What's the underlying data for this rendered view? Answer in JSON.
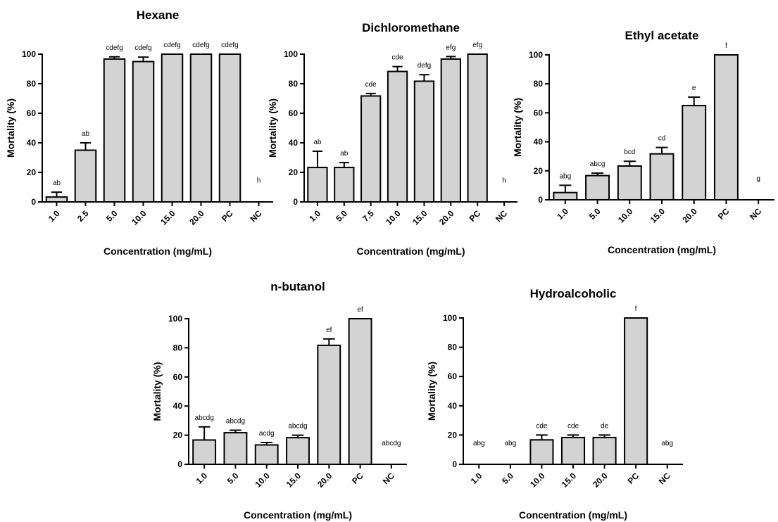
{
  "chart_data": [
    {
      "type": "bar",
      "title": "Hexane",
      "xlabel": "Concentration (mg/mL)",
      "ylabel": "Mortality (%)",
      "ylim": [
        0,
        100
      ],
      "yticks": [
        0,
        20,
        40,
        60,
        80,
        100
      ],
      "categories": [
        "1.0",
        "2.5",
        "5.0",
        "10.0",
        "15.0",
        "20.0",
        "PC",
        "NC"
      ],
      "values": [
        3.3,
        35,
        96.7,
        95,
        100,
        100,
        100,
        0
      ],
      "errors": [
        3.3,
        5,
        1.5,
        3,
        0,
        0,
        0,
        0
      ],
      "labels": [
        "ab",
        "ab",
        "cdefg",
        "cdefg",
        "cdefg",
        "cdefg",
        "cdefg",
        "h"
      ]
    },
    {
      "type": "bar",
      "title": "Dichloromethane",
      "xlabel": "Concentration (mg/mL)",
      "ylabel": "Mortality (%)",
      "ylim": [
        0,
        100
      ],
      "yticks": [
        0,
        20,
        40,
        60,
        80,
        100
      ],
      "categories": [
        "1.0",
        "5.0",
        "7.5",
        "10.0",
        "15.0",
        "20.0",
        "PC",
        "NC"
      ],
      "values": [
        23.3,
        23.3,
        71.7,
        88.3,
        81.7,
        96.7,
        100,
        0
      ],
      "errors": [
        11,
        3.3,
        1.7,
        3.3,
        4.4,
        1.7,
        0,
        0
      ],
      "labels": [
        "ab",
        "ab",
        "cde",
        "cde",
        "defg",
        "efg",
        "efg",
        "h"
      ]
    },
    {
      "type": "bar",
      "title": "Ethyl acetate",
      "xlabel": "Concentration (mg/mL)",
      "ylabel": "Mortality (%)",
      "ylim": [
        0,
        100
      ],
      "yticks": [
        0,
        20,
        40,
        60,
        80,
        100
      ],
      "categories": [
        "1.0",
        "5.0",
        "10.0",
        "15.0",
        "20.0",
        "PC",
        "NC"
      ],
      "values": [
        5,
        16.7,
        23.3,
        31.7,
        65,
        100,
        0
      ],
      "errors": [
        5,
        1.7,
        3.3,
        4.4,
        5.8,
        0,
        0
      ],
      "labels": [
        "abg",
        "abcg",
        "bcd",
        "cd",
        "e",
        "f",
        "g"
      ]
    },
    {
      "type": "bar",
      "title": "n-butanol",
      "xlabel": "Concentration (mg/mL)",
      "ylabel": "Mortality (%)",
      "ylim": [
        0,
        100
      ],
      "yticks": [
        0,
        20,
        40,
        60,
        80,
        100
      ],
      "categories": [
        "1.0",
        "5.0",
        "10.0",
        "15.0",
        "20.0",
        "PC",
        "NC"
      ],
      "values": [
        16.7,
        21.7,
        13.3,
        18.3,
        81.7,
        100,
        0
      ],
      "errors": [
        9,
        1.7,
        1.7,
        1.7,
        4.4,
        0,
        0
      ],
      "labels": [
        "abcdg",
        "abcdg",
        "acdg",
        "abcdg",
        "ef",
        "ef",
        "abcdg"
      ]
    },
    {
      "type": "bar",
      "title": "Hydroalcoholic",
      "xlabel": "Concentration (mg/mL)",
      "ylabel": "Mortality (%)",
      "ylim": [
        0,
        100
      ],
      "yticks": [
        0,
        20,
        40,
        60,
        80,
        100
      ],
      "categories": [
        "1.0",
        "5.0",
        "10.0",
        "15.0",
        "20.0",
        "PC",
        "NC"
      ],
      "values": [
        0,
        0,
        16.7,
        18.3,
        18.3,
        100,
        0
      ],
      "errors": [
        0,
        0,
        3.3,
        1.7,
        1.7,
        0,
        0
      ],
      "labels": [
        "abg",
        "abg",
        "cde",
        "cde",
        "de",
        "f",
        "abg"
      ]
    }
  ],
  "colors": {
    "bar_fill": "#d3d3d3",
    "stroke": "#000000"
  }
}
